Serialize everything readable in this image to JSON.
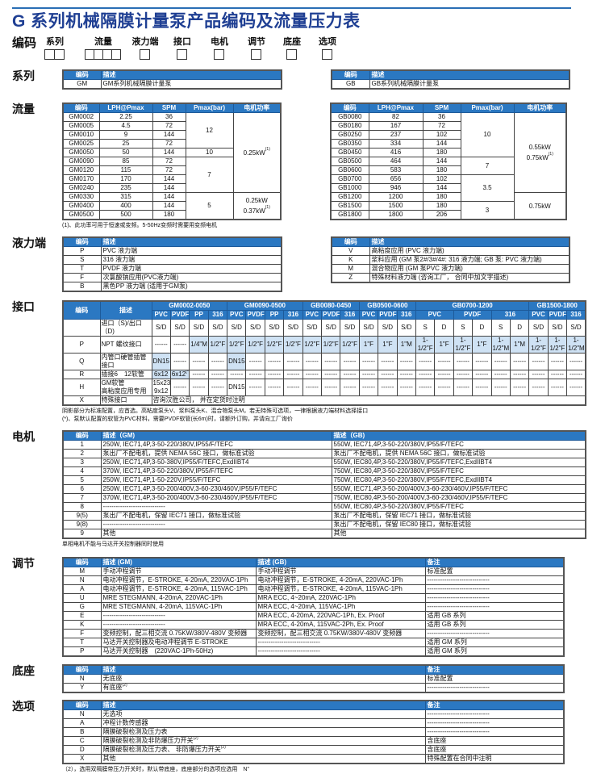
{
  "title": "G 系列机械隔膜计量泵产品编码及流量压力表",
  "code_row": {
    "label": "编码",
    "fields": [
      {
        "label": "系列",
        "boxes": 2
      },
      {
        "label": "流量",
        "boxes": 4
      },
      {
        "label": "液力端",
        "boxes": 1
      },
      {
        "label": "接口",
        "boxes": 1
      },
      {
        "label": "电机",
        "boxes": 1
      },
      {
        "label": "调节",
        "boxes": 1
      },
      {
        "label": "底座",
        "boxes": 1
      },
      {
        "label": "选项",
        "boxes": 1
      }
    ]
  },
  "colors": {
    "header_blue": "#2b78c2",
    "title_blue": "#1f3f93",
    "standard_shade": "#cfe2f4"
  },
  "series": {
    "label": "系列",
    "header": [
      "编码",
      "描述"
    ],
    "gm": [
      [
        "GM",
        "GM系列机械隔膜计量泵"
      ]
    ],
    "gb": [
      [
        "GB",
        "GB系列机械隔膜计量泵"
      ]
    ]
  },
  "flow": {
    "label": "流量",
    "header": [
      "编码",
      "LPH@Pmax",
      "SPM",
      "Pmax(bar)",
      "电机功率"
    ],
    "gm": {
      "rows": [
        [
          "GM0002",
          "2.25",
          "36"
        ],
        [
          "GM0005",
          "4.5",
          "72"
        ],
        [
          "GM0010",
          "9",
          "144"
        ],
        [
          "GM0025",
          "25",
          "72"
        ],
        [
          "GM0050",
          "50",
          "144"
        ],
        [
          "GM0090",
          "85",
          "72"
        ],
        [
          "GM0120",
          "115",
          "72"
        ],
        [
          "GM0170",
          "170",
          "144"
        ],
        [
          "GM0240",
          "235",
          "144"
        ],
        [
          "GM0330",
          "315",
          "144"
        ],
        [
          "GM0400",
          "400",
          "144"
        ],
        [
          "GM0500",
          "500",
          "180"
        ]
      ],
      "pmax": [
        {
          "value": "12",
          "span": 4
        },
        {
          "value": "10",
          "span": 1
        },
        {
          "value": "7",
          "span": 4
        },
        {
          "value": "5",
          "span": 3
        }
      ],
      "power": [
        {
          "lines": [
            "0.25kW"
          ],
          "sup": "(1)",
          "span": 9
        },
        {
          "lines": [
            "0.25kW",
            "0.37kW"
          ],
          "sup": "(1)",
          "span": 3
        }
      ]
    },
    "gb": {
      "rows": [
        [
          "GB0080",
          "82",
          "36"
        ],
        [
          "GB0180",
          "167",
          "72"
        ],
        [
          "GB0250",
          "237",
          "102"
        ],
        [
          "GB0350",
          "334",
          "144"
        ],
        [
          "GB0450",
          "416",
          "180"
        ],
        [
          "GB0500",
          "464",
          "144"
        ],
        [
          "GB0600",
          "583",
          "180"
        ],
        [
          "GB0700",
          "656",
          "102"
        ],
        [
          "GB1000",
          "946",
          "144"
        ],
        [
          "GB1200",
          "1200",
          "180"
        ],
        [
          "GB1500",
          "1500",
          "180"
        ],
        [
          "GB1800",
          "1800",
          "206"
        ]
      ],
      "pmax": [
        {
          "value": "10",
          "span": 5
        },
        {
          "value": "7",
          "span": 2
        },
        {
          "value": "3.5",
          "span": 3
        },
        {
          "value": "3",
          "span": 2
        }
      ],
      "power": [
        {
          "lines": [
            "0.55kW",
            "0.75kW"
          ],
          "sup": "(1)",
          "span": 9
        },
        {
          "lines": [
            "0.75kW"
          ],
          "sup": "",
          "span": 3
        }
      ]
    },
    "note": "(1)、此功率可用于恒速或变频。5-50Hz变频时需要用变频电机"
  },
  "liquid_end": {
    "label": "液力端",
    "header": [
      "编码",
      "描述"
    ],
    "left": [
      [
        "P",
        "PVC 液力端"
      ],
      [
        "S",
        "316 液力端"
      ],
      [
        "T",
        "PVDF 液力端"
      ],
      [
        "F",
        "次氯酸钠应用(PVC液力端)"
      ],
      [
        "B",
        "黑色PP 液力端 (适用于GM泵)"
      ]
    ],
    "right": [
      [
        "V",
        "高粘度应用 (PVC 液力端)"
      ],
      [
        "K",
        "浆料应用 (GM 泵2#/3#/4#: 316 液力端; GB 泵: PVC 液力端)"
      ],
      [
        "M",
        "混合物应用 (GM 泵PVC 液力端)"
      ],
      [
        "Z",
        "特殊材料液力端 (咨询工厂， 合同中加文字描述)"
      ]
    ]
  },
  "interface": {
    "label": "接口",
    "header": [
      "编码",
      "描述"
    ],
    "groups": [
      {
        "name": "GM0002-0050",
        "subs": [
          "PVC",
          "PVDF",
          "PP",
          "316"
        ],
        "sub_span": 1
      },
      {
        "name": "GM0090-0500",
        "subs": [
          "PVC",
          "PVDF",
          "PP",
          "316"
        ],
        "sub_span": 1
      },
      {
        "name": "GB0080-0450",
        "subs": [
          "PVC",
          "PVDF",
          "316"
        ],
        "sub_span": 1
      },
      {
        "name": "GB0500-0600",
        "subs": [
          "PVC",
          "PVDF",
          "316"
        ],
        "sub_span": 1
      },
      {
        "name": "GB0700-1200",
        "subs": [
          "PVC",
          "PVDF",
          "316"
        ],
        "sub_span": 2
      },
      {
        "name": "GB1500-1800",
        "subs": [
          "PVC",
          "PVDF",
          "316"
        ],
        "sub_span": 1
      }
    ],
    "rows": [
      {
        "code": "",
        "desc": "进口（S)/出口（D)",
        "values": [
          "S/D",
          "S/D",
          "S/D",
          "S/D",
          "S/D",
          "S/D",
          "S/D",
          "S/D",
          "S/D",
          "S/D",
          "S/D",
          "S/D",
          "S/D",
          "S/D",
          "S",
          "D",
          "S",
          "D",
          "S",
          "D",
          "S/D",
          "S/D",
          "S/D"
        ],
        "standard": []
      },
      {
        "code": "P",
        "desc": "NPT 螺纹接口",
        "values": [
          "------",
          "------",
          "1/4\"M",
          "1/2\"F",
          "1/2\"F",
          "1/2\"F",
          "1/2\"F",
          "1/2\"F",
          "1/2\"F",
          "1/2\"F",
          "1/2\"F",
          "1\"F",
          "1\"F",
          "1\"M",
          "1-1/2\"F",
          "1\"F",
          "1-1/2\"F",
          "1\"F",
          "1-1/2\"M",
          "1\"M",
          "1-1/2\"F",
          "1-1/2\"F",
          "1-1/2\"M"
        ],
        "standard": [
          2,
          3,
          4,
          5,
          6,
          7,
          8,
          9,
          10,
          11,
          12,
          13,
          14,
          15,
          16,
          17,
          18,
          19,
          20,
          21,
          22
        ]
      },
      {
        "code": "Q",
        "desc": "内管口硬管插管接口",
        "values": [
          "DN15",
          "------",
          "------",
          "------",
          "DN15",
          "------",
          "------",
          "------",
          "------",
          "------",
          "------",
          "------",
          "------",
          "------",
          "------",
          "------",
          "------",
          "------",
          "------",
          "------",
          "------",
          "------",
          "------"
        ],
        "standard": [
          0,
          4
        ]
      },
      {
        "code": "R",
        "desc": "插接6　12软管",
        "values": [
          {
            "v": "6x12",
            "sup": ""
          },
          {
            "v": "6x12",
            "sup": "(*)"
          },
          "------",
          "------",
          "------",
          "------",
          "------",
          "------",
          "------",
          "------",
          "------",
          "------",
          "------",
          "------",
          "------",
          "------",
          "------",
          "------",
          "------",
          "------",
          "------",
          "------",
          "------"
        ],
        "standard": [
          0,
          1
        ]
      },
      {
        "code": "H",
        "desc": "GM软管\n高粘度应用专用",
        "values": [
          "15x23\n9x12",
          "------",
          "------",
          "------",
          "DN15",
          "------",
          "------",
          "------",
          "------",
          "------",
          "------",
          "------",
          "------",
          "------",
          "------",
          "------",
          "------",
          "------",
          "------",
          "------",
          "------",
          "------",
          "------"
        ],
        "standard": []
      },
      {
        "code": "X",
        "desc": "特殊接口",
        "values": [
          "咨询汉胜公司， 并在定货时注明"
        ],
        "standard": []
      }
    ],
    "notes": [
      "阴影部分为标准配置，应首选。高粘度泵头V、浆料泵头K、混合物泵头M，若无特殊可选项，一律根据液力端材料选择接口",
      "(*)、泵默认配置的软管为PVC材料，需要PVDF软管(长6m)时，请额外订购，并请向工厂询价"
    ]
  },
  "motor": {
    "label": "电机",
    "header": [
      "编码",
      "描述（GM)",
      "描述（GB)"
    ],
    "rows": [
      [
        "1",
        "250W, IEC71,4P,3-50-220/380V,IP55/F/TEFC",
        "550W, IEC71,4P,3-50-220/380V,IP55/F/TEFC"
      ],
      [
        "2",
        "泵出厂不配电机，提供 NEMA 56C 接口，做标准试验",
        "泵出厂不配电机，提供 NEMA 56C 接口，做标准试验"
      ],
      [
        "3",
        "250W, IEC71,4P,3-50-380V,IP55/F/TEFC,ExdIIBT4",
        "550W, IEC80,4P,3-50-220/380V,IP55/F/TEFC,ExdIIBT4"
      ],
      [
        "4",
        "370W, IEC71,4P,3-50-220/380V,IP55/F/TEFC",
        "750W, IEC80,4P,3-50-220/380V,IP55/F/TEFC"
      ],
      [
        "5",
        "250W, IEC71,4P,1-50-220V,IP55/F/TEFC",
        "750W, IEC80,4P,3-50-220/380V,IP55/F/TEFC,ExdIIBT4"
      ],
      [
        "6",
        "250W, IEC71,4P,3-50-200/400V,3-60-230/460V,IP55/F/TEFC",
        "550W, IEC71,4P,3-50-200/400V,3-60-230/460V,IP55/F/TEFC"
      ],
      [
        "7",
        "370W, IEC71,4P,3-50-200/400V,3-60-230/460V,IP55/F/TEFC",
        "750W, IEC80,4P,3-50-200/400V,3-60-230/460V,IP55/F/TEFC"
      ],
      [
        "8",
        "-----------------------------",
        "550W, IEC80,4P,3-50-220/380V,IP55/F/TEFC"
      ],
      [
        "9(5)",
        "泵出厂不配电机，保留 IEC71 接口，做标准试验",
        "泵出厂不配电机，保留 IEC71 接口，做标准试验"
      ],
      [
        "9(8)",
        "-----------------------------",
        "泵出厂不配电机，保留 IEC80 接口，做标准试验"
      ],
      [
        "9",
        "其他",
        "其他"
      ]
    ],
    "note": "单相电机不能与马达开关控制器同时使用"
  },
  "control": {
    "label": "调节",
    "header": [
      "编码",
      "描述 (GM)",
      "描述 (GB)",
      "备注"
    ],
    "rows": [
      [
        "M",
        "手动冲程调节",
        "手动冲程调节",
        "标准配置"
      ],
      [
        "N",
        "电动冲程调节，E-STROKE, 4-20mA, 220VAC-1Ph",
        "电动冲程调节，E-STROKE, 4-20mA, 220VAC-1Ph",
        "-----------------------------"
      ],
      [
        "A",
        "电动冲程调节，E-STROKE, 4-20mA, 115VAC-1Ph",
        "电动冲程调节，E-STROKE, 4-20mA, 115VAC-1Ph",
        "-----------------------------"
      ],
      [
        "U",
        "MRE STEGMANN, 4-20mA, 220VAC-1Ph",
        "MRA ECC, 4~20mA, 220VAC-1Ph",
        "-----------------------------"
      ],
      [
        "G",
        "MRE STEGMANN, 4-20mA, 115VAC-1Ph",
        "MRA ECC, 4~20mA, 115VAC-1Ph",
        "-----------------------------"
      ],
      [
        "E",
        "-----------------------------",
        "MRA ECC, 4-20mA, 220VAC-1Ph, Ex. Proof",
        "适用 GB 系列"
      ],
      [
        "K",
        "-----------------------------",
        "MRA ECC, 4-20mA, 115VAC-2Ph, Ex. Proof",
        "适用 GB 系列"
      ],
      [
        "F",
        "变频控制，配三相交流 0.75KW/380V-480V 变频器",
        "变频控制，配三相交流 0.75KW/380V-480V 变频器",
        "-----------------------------"
      ],
      [
        "T",
        "马达开关控制器及电动冲程调节 E-STROKE",
        "-----------------------------",
        "适用 GM 系列"
      ],
      [
        "P",
        "马达开关控制器　(220VAC-1Ph-50Hz)",
        "-----------------------------",
        "适用 GM 系列"
      ]
    ]
  },
  "base": {
    "label": "底座",
    "header": [
      "编码",
      "描述",
      "备注"
    ],
    "rows": [
      {
        "code": "N",
        "desc": "无底座",
        "sup": "",
        "note": "标准配置"
      },
      {
        "code": "Y",
        "desc": "有底座",
        "sup": "(2)",
        "note": "-----------------------------"
      }
    ]
  },
  "options": {
    "label": "选项",
    "header": [
      "编码",
      "描述",
      "备注"
    ],
    "rows": [
      {
        "code": "N",
        "desc": "无选项",
        "sup": "",
        "note": "-----------------------------"
      },
      {
        "code": "A",
        "desc": "冲程计数传感器",
        "sup": "",
        "note": "-----------------------------"
      },
      {
        "code": "B",
        "desc": "隔膜破裂检测及压力表",
        "sup": "",
        "note": "-----------------------------"
      },
      {
        "code": "C",
        "desc": "隔膜破裂检测及非防爆压力开关",
        "sup": "(2)",
        "note": "含底座"
      },
      {
        "code": "D",
        "desc": "隔膜破裂检测及压力表、 非防爆压力开关",
        "sup": "(2)",
        "note": "含底座"
      },
      {
        "code": "X",
        "desc": "其他",
        "sup": "",
        "note": "特殊配置在合同中注明"
      }
    ],
    "note": "（2），选用双隔膜带压力开关时，默认带底座，底座部分的选项应选用　N\""
  }
}
